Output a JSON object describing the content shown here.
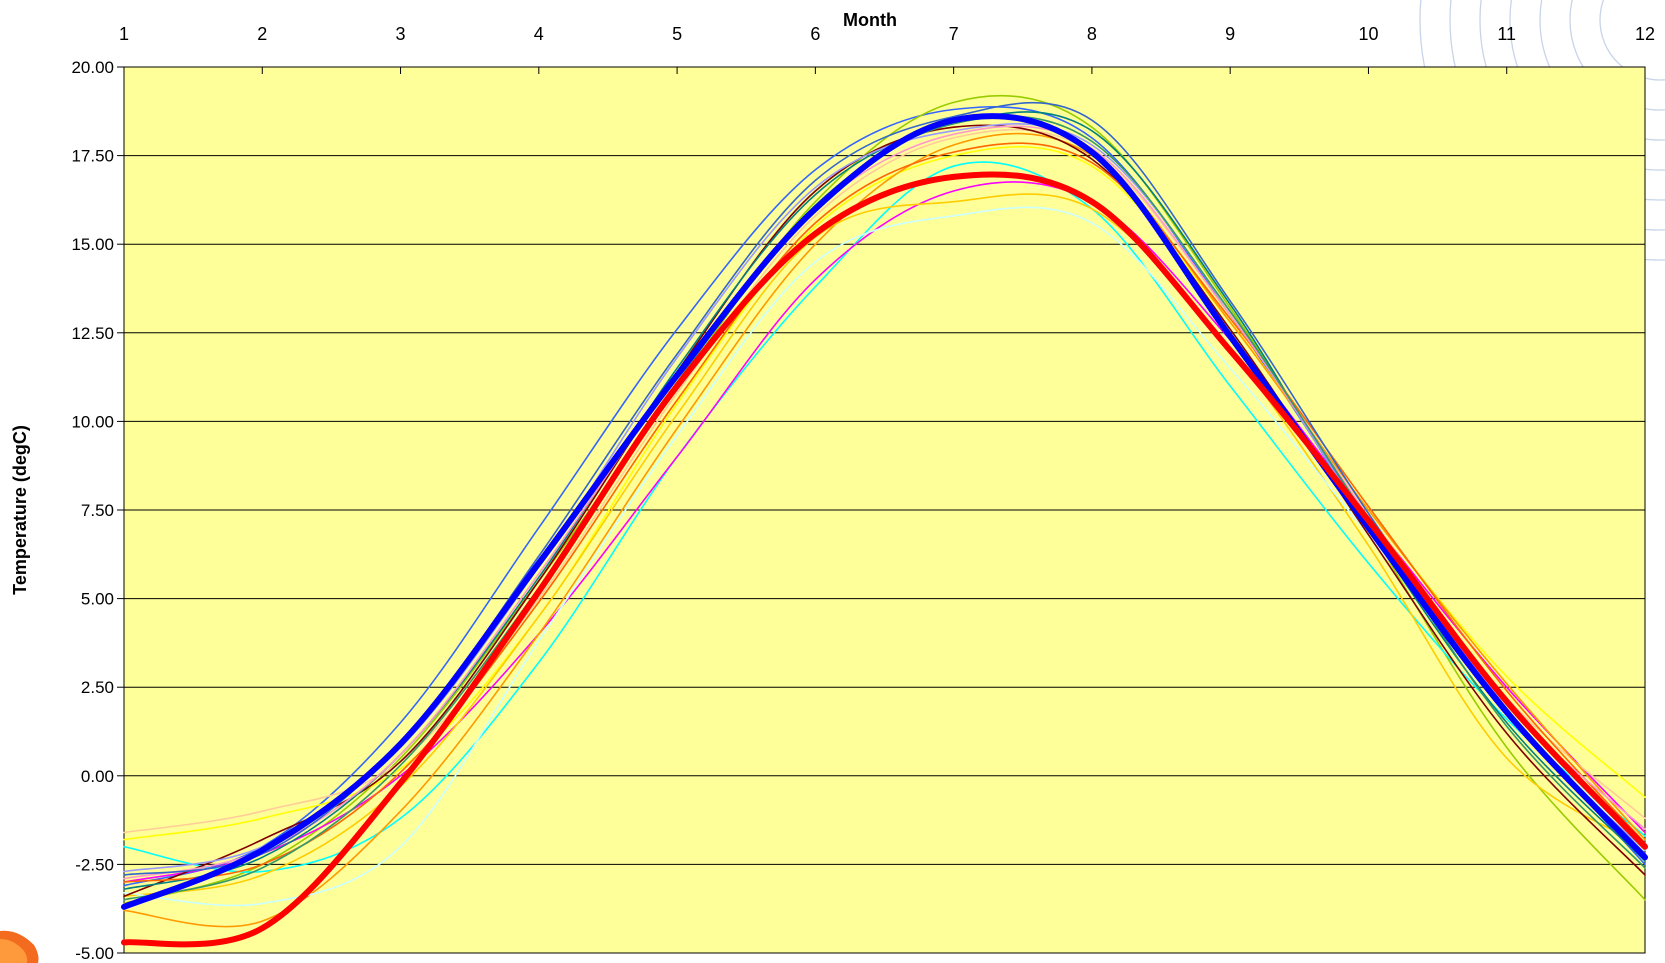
{
  "chart_data": {
    "type": "line",
    "title": "",
    "xlabel": "Month",
    "ylabel": "Temperature (degC)",
    "x_ticks": [
      "1",
      "2",
      "3",
      "4",
      "5",
      "6",
      "7",
      "8",
      "9",
      "10",
      "11",
      "12"
    ],
    "y_ticks": [
      "20.00",
      "17.50",
      "15.00",
      "12.50",
      "10.00",
      "7.50",
      "5.00",
      "2.50",
      "0.00",
      "-2.50",
      "-5.00"
    ],
    "xlim": [
      1,
      12
    ],
    "ylim": [
      -5,
      20
    ],
    "x_axis_position": "top",
    "grid": "horizontal",
    "plot_background": "#FFFF99",
    "legend": "none",
    "x": [
      1,
      2,
      3,
      4,
      5,
      6,
      7,
      8,
      9,
      10,
      11,
      12
    ],
    "series": [
      {
        "color": "#0000FF",
        "width": 6,
        "values": [
          -3.7,
          -2.1,
          0.9,
          6.0,
          11.3,
          16.0,
          18.5,
          17.6,
          12.4,
          7.0,
          1.8,
          -2.3
        ]
      },
      {
        "color": "#FF0000",
        "width": 6,
        "values": [
          -4.7,
          -4.3,
          -0.2,
          5.2,
          11.0,
          15.3,
          16.9,
          16.2,
          12.0,
          7.2,
          2.1,
          -2.0
        ]
      },
      {
        "color": "#3366FF",
        "width": 1.6,
        "values": [
          -3.1,
          -2.0,
          1.5,
          7.0,
          12.6,
          17.1,
          18.8,
          18.0,
          13.0,
          7.2,
          1.9,
          -2.5
        ]
      },
      {
        "color": "#99CC00",
        "width": 1.6,
        "values": [
          -3.6,
          -2.5,
          0.5,
          5.5,
          11.0,
          16.2,
          19.0,
          18.3,
          13.2,
          7.0,
          0.8,
          -3.5
        ]
      },
      {
        "color": "#00FFFF",
        "width": 1.6,
        "values": [
          -2.0,
          -2.7,
          -1.2,
          3.2,
          9.0,
          13.8,
          17.2,
          16.0,
          11.0,
          6.0,
          1.6,
          -1.7
        ]
      },
      {
        "color": "#FF00FF",
        "width": 1.6,
        "values": [
          -3.0,
          -2.2,
          0.0,
          4.0,
          9.0,
          14.0,
          16.5,
          16.2,
          12.3,
          7.3,
          2.5,
          -1.6
        ]
      },
      {
        "color": "#FFFF00",
        "width": 1.6,
        "values": [
          -1.8,
          -1.2,
          0.2,
          4.5,
          10.5,
          15.5,
          17.5,
          17.2,
          12.8,
          7.5,
          2.8,
          -0.6
        ]
      },
      {
        "color": "#FFCC99",
        "width": 1.6,
        "values": [
          -1.6,
          -1.0,
          0.4,
          5.0,
          10.8,
          15.8,
          18.0,
          17.6,
          13.0,
          7.4,
          2.2,
          -1.2
        ]
      },
      {
        "color": "#FF9900",
        "width": 1.6,
        "values": [
          -3.8,
          -4.1,
          -1.0,
          4.0,
          9.8,
          15.0,
          17.8,
          17.5,
          12.8,
          7.5,
          2.6,
          -1.8
        ]
      },
      {
        "color": "#FFCC00",
        "width": 1.6,
        "values": [
          -3.4,
          -2.8,
          -0.3,
          4.5,
          10.2,
          15.2,
          16.2,
          16.0,
          12.0,
          6.5,
          0.5,
          -2.0
        ]
      },
      {
        "color": "#CCFFFF",
        "width": 1.6,
        "values": [
          -3.3,
          -3.6,
          -2.0,
          3.8,
          9.6,
          14.5,
          15.8,
          15.6,
          11.5,
          6.8,
          2.0,
          -2.2
        ]
      },
      {
        "color": "#800000",
        "width": 1.6,
        "values": [
          -3.4,
          -1.8,
          0.4,
          5.5,
          11.4,
          16.5,
          18.3,
          17.4,
          12.6,
          6.8,
          1.2,
          -2.8
        ]
      },
      {
        "color": "#008080",
        "width": 1.6,
        "values": [
          -3.2,
          -2.3,
          0.6,
          5.6,
          11.5,
          16.4,
          18.4,
          18.2,
          13.3,
          7.0,
          1.5,
          -2.4
        ]
      },
      {
        "color": "#9999FF",
        "width": 1.6,
        "values": [
          -2.7,
          -2.0,
          0.8,
          5.9,
          11.8,
          16.6,
          18.2,
          17.8,
          13.1,
          7.1,
          1.7,
          -2.1
        ]
      },
      {
        "color": "#FF6600",
        "width": 1.6,
        "values": [
          -3.0,
          -2.5,
          0.1,
          4.9,
          10.6,
          15.6,
          17.6,
          17.3,
          12.9,
          7.6,
          2.4,
          -1.9
        ]
      },
      {
        "color": "#FF99CC",
        "width": 1.6,
        "values": [
          -2.9,
          -2.1,
          0.6,
          5.7,
          11.3,
          16.0,
          18.1,
          17.7,
          13.0,
          7.3,
          2.0,
          -1.5
        ]
      },
      {
        "color": "#3366CC",
        "width": 1.6,
        "values": [
          -2.8,
          -2.2,
          0.9,
          6.2,
          11.9,
          16.8,
          18.6,
          18.5,
          13.4,
          7.4,
          1.8,
          -2.2
        ]
      },
      {
        "color": "#339966",
        "width": 1.6,
        "values": [
          -3.5,
          -2.6,
          0.3,
          5.3,
          11.1,
          16.1,
          18.4,
          17.9,
          13.1,
          7.2,
          1.4,
          -2.6
        ]
      }
    ]
  }
}
